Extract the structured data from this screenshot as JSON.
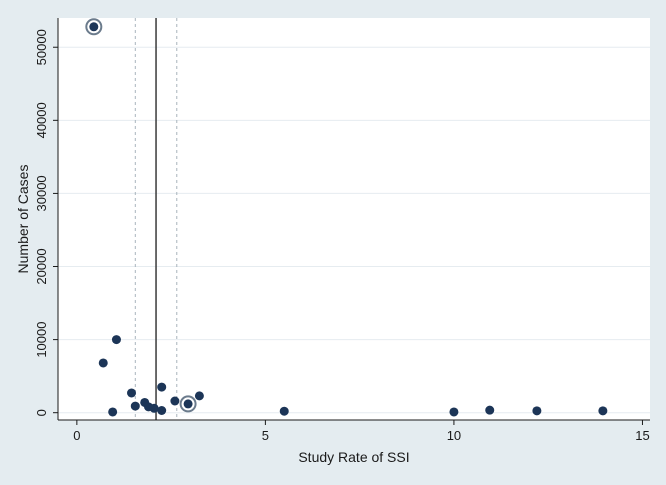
{
  "chart_data": {
    "type": "scatter",
    "title": "",
    "xlabel": "Study Rate of SSI",
    "ylabel": "Number of Cases",
    "xlim": [
      -0.5,
      15.2
    ],
    "ylim": [
      -1000,
      54000
    ],
    "xticks": [
      0,
      5,
      10,
      15
    ],
    "yticks": [
      0,
      10000,
      20000,
      30000,
      40000,
      50000
    ],
    "xtick_labels": [
      "0",
      "5",
      "10",
      "15"
    ],
    "ytick_labels": [
      "0",
      "10000",
      "20000",
      "30000",
      "40000",
      "50000"
    ],
    "grid": "horizontal",
    "reference_lines": [
      {
        "x": 2.1,
        "style": "solid"
      },
      {
        "x": 1.55,
        "style": "dashed"
      },
      {
        "x": 2.65,
        "style": "dashed"
      }
    ],
    "points": [
      {
        "x": 0.45,
        "y": 52800,
        "highlighted": true
      },
      {
        "x": 0.7,
        "y": 6800
      },
      {
        "x": 1.05,
        "y": 10000
      },
      {
        "x": 0.95,
        "y": 100
      },
      {
        "x": 1.45,
        "y": 2700
      },
      {
        "x": 1.55,
        "y": 900
      },
      {
        "x": 1.8,
        "y": 1400
      },
      {
        "x": 1.9,
        "y": 800
      },
      {
        "x": 2.05,
        "y": 600
      },
      {
        "x": 2.25,
        "y": 3500
      },
      {
        "x": 2.25,
        "y": 300
      },
      {
        "x": 2.6,
        "y": 1600
      },
      {
        "x": 2.95,
        "y": 1200,
        "highlighted": true
      },
      {
        "x": 3.25,
        "y": 2300
      },
      {
        "x": 5.5,
        "y": 200
      },
      {
        "x": 10.0,
        "y": 100
      },
      {
        "x": 10.95,
        "y": 350
      },
      {
        "x": 12.2,
        "y": 250
      },
      {
        "x": 13.95,
        "y": 250
      }
    ],
    "colors": {
      "marker": "#1c3557",
      "highlight_ring": "#6b7b8c",
      "plot_bg": "#ffffff",
      "outer_bg": "#e4ecf0",
      "grid": "#e6ecf0",
      "ref_line": "#3a3a3a",
      "ref_dashed": "#a8b4bc"
    }
  }
}
